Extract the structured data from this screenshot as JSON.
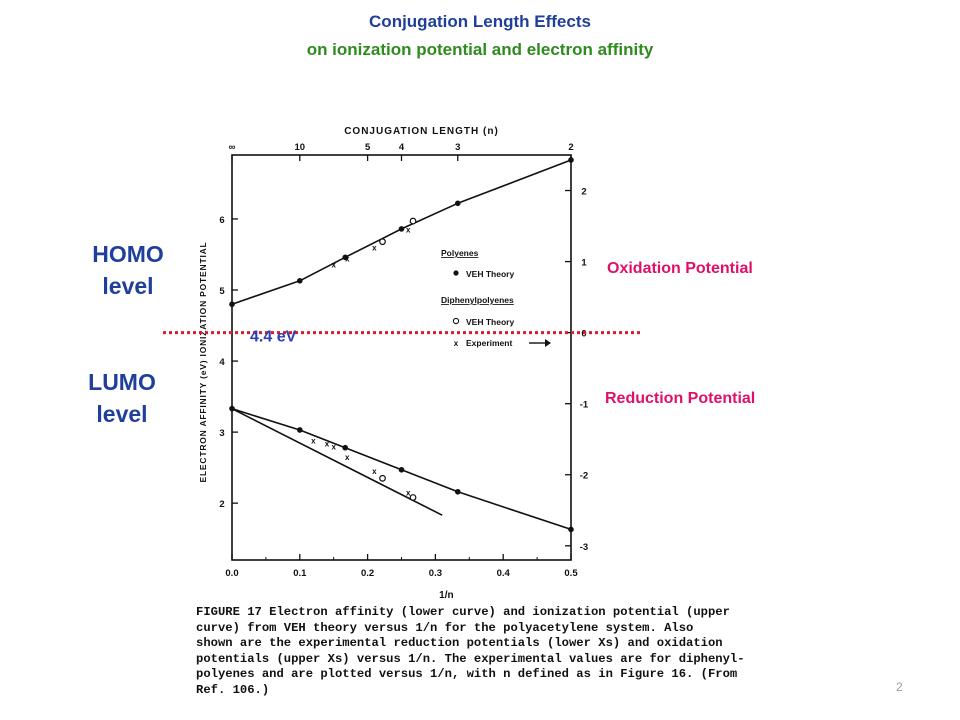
{
  "slide": {
    "title_line1": "Conjugation Length Effects",
    "title_line2": "on ionization potential and electron affinity",
    "homo_line1": "HOMO",
    "homo_line2": "level",
    "lumo_line1": "LUMO",
    "lumo_line2": "level",
    "oxidation_label": "Oxidation Potential",
    "reduction_label": "Reduction Potential",
    "threshold_label": "4.4 eV",
    "page_number": "2",
    "caption_lines": [
      "FIGURE 17  Electron affinity (lower curve) and ionization potential (upper",
      "curve) from VEH theory versus 1/n for the polyacetylene system.  Also",
      "shown are the experimental reduction potentials (lower Xs) and oxidation",
      "potentials (upper Xs) versus 1/n.  The experimental values are for diphenyl-",
      "polyenes and are plotted versus 1/n, with n defined as in Figure 16.  (From",
      "Ref. 106.)"
    ]
  },
  "chart_data": {
    "type": "line",
    "title": "CONJUGATION LENGTH (n)",
    "xlabel": "1/n",
    "ylabel_left": "ELECTRON AFFINITY (eV)  IONIZATION POTENTIAL",
    "xlim": [
      0,
      0.5
    ],
    "ylim_left": [
      1.2,
      6.9
    ],
    "x_ticks": [
      "0.0",
      "0.1",
      "0.2",
      "0.3",
      "0.4",
      "0.5"
    ],
    "y_ticks_left": [
      "2",
      "3",
      "4",
      "5",
      "6"
    ],
    "top_axis_ticks": [
      {
        "label": "∞",
        "x": 0
      },
      {
        "label": "10",
        "x": 0.1
      },
      {
        "label": "5",
        "x": 0.2
      },
      {
        "label": "4",
        "x": 0.25
      },
      {
        "label": "3",
        "x": 0.333
      },
      {
        "label": "2",
        "x": 0.5
      }
    ],
    "right_axis_ticks": [
      {
        "label": "2",
        "y": 6.4
      },
      {
        "label": "1",
        "y": 5.4
      },
      {
        "label": "0",
        "y": 4.4
      },
      {
        "label": "-1",
        "y": 3.4
      },
      {
        "label": "-2",
        "y": 2.4
      },
      {
        "label": "-3",
        "y": 1.4
      }
    ],
    "threshold_y": 4.4,
    "series": [
      {
        "name": "Polyenes VEH Theory (ionization potential)",
        "marker": "filled",
        "x": [
          0,
          0.1,
          0.167,
          0.25,
          0.333,
          0.5
        ],
        "y": [
          4.8,
          5.13,
          5.46,
          5.86,
          6.22,
          6.83
        ]
      },
      {
        "name": "Diphenylpolyenes VEH Theory (ionization potential)",
        "marker": "open",
        "x": [
          0.222,
          0.267
        ],
        "y": [
          5.68,
          5.97
        ]
      },
      {
        "name": "Experiment (oxidation potential)",
        "marker": "x",
        "x": [
          0.15,
          0.17,
          0.21,
          0.26
        ],
        "y": [
          5.36,
          5.44,
          5.6,
          5.85
        ]
      },
      {
        "name": "Polyenes VEH Theory (electron affinity)",
        "marker": "filled",
        "x": [
          0,
          0.1,
          0.167,
          0.25,
          0.333,
          0.5
        ],
        "y": [
          3.33,
          3.03,
          2.78,
          2.47,
          2.16,
          1.63
        ]
      },
      {
        "name": "Diphenylpolyenes VEH Theory (electron affinity)",
        "marker": "open",
        "x": [
          0.222,
          0.267
        ],
        "y": [
          2.35,
          2.08
        ]
      },
      {
        "name": "Experiment (reduction potential)",
        "marker": "x",
        "x": [
          0.12,
          0.14,
          0.15,
          0.17,
          0.21,
          0.26
        ],
        "y": [
          2.88,
          2.84,
          2.8,
          2.65,
          2.45,
          2.15
        ]
      }
    ],
    "fit_lines": [
      {
        "name": "upper curve",
        "x": [
          0,
          0.1,
          0.167,
          0.25,
          0.333,
          0.5
        ],
        "y": [
          4.8,
          5.13,
          5.46,
          5.86,
          6.22,
          6.83
        ]
      },
      {
        "name": "lower curve",
        "x": [
          0,
          0.1,
          0.167,
          0.25,
          0.333,
          0.5
        ],
        "y": [
          3.33,
          3.03,
          2.78,
          2.47,
          2.16,
          1.63
        ]
      },
      {
        "name": "diphenylpolyene line",
        "x": [
          0,
          0.31
        ],
        "y": [
          3.33,
          1.83
        ]
      }
    ],
    "legend": {
      "header1": "Polyenes",
      "entry1": "VEH Theory",
      "header2": "Diphenylpolyenes",
      "entry2": "VEH Theory",
      "entry3": "Experiment"
    },
    "grid": false
  }
}
